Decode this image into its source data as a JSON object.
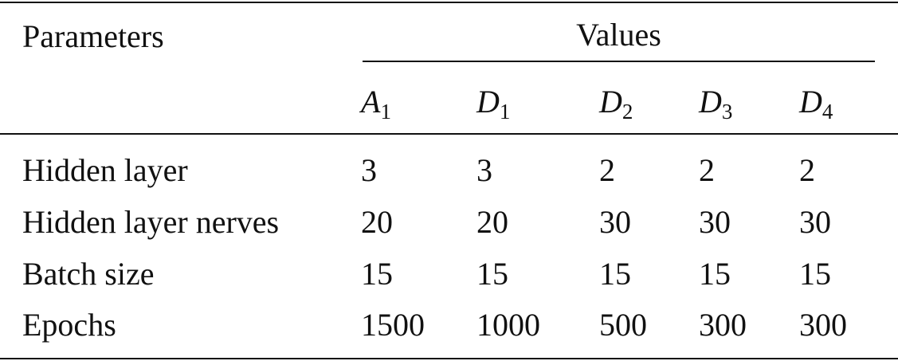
{
  "table": {
    "header": {
      "parameters": "Parameters",
      "values": "Values",
      "columns": [
        {
          "letter": "A",
          "sub": "1"
        },
        {
          "letter": "D",
          "sub": "1"
        },
        {
          "letter": "D",
          "sub": "2"
        },
        {
          "letter": "D",
          "sub": "3"
        },
        {
          "letter": "D",
          "sub": "4"
        }
      ]
    },
    "rows": [
      [
        "Hidden layer",
        3,
        3,
        2,
        2,
        2
      ],
      [
        "Hidden layer nerves",
        20,
        20,
        30,
        30,
        30
      ],
      [
        "Batch size",
        15,
        15,
        15,
        15,
        15
      ],
      [
        "Epochs",
        1500,
        1000,
        500,
        300,
        300
      ]
    ]
  }
}
